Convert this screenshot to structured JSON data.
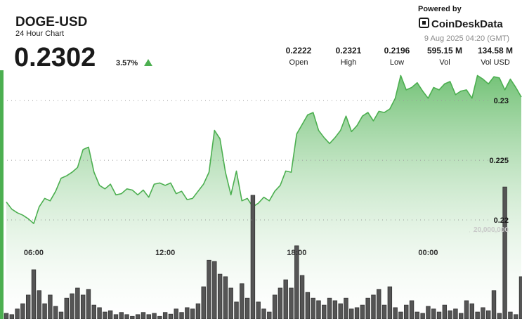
{
  "header": {
    "price": "0.2302",
    "change": "3.57%",
    "powered_by": "Powered by",
    "brand": "CoinDeskData",
    "timestamp": "9 Aug 2025 04:20 (GMT)",
    "stats": [
      {
        "value": "0.2222",
        "label": "Open"
      },
      {
        "value": "0.2321",
        "label": "High"
      },
      {
        "value": "0.2196",
        "label": "Low"
      },
      {
        "value": "595.15 M",
        "label": "Vol"
      },
      {
        "value": "134.58 M",
        "label": "Vol USD"
      }
    ]
  },
  "chart_data": {
    "type": "line",
    "title": "DOGE-USD",
    "subtitle": "24 Hour Chart",
    "categories": [
      null,
      null,
      null,
      null,
      null,
      "06:00",
      null,
      null,
      null,
      null,
      null,
      null,
      null,
      null,
      null,
      null,
      null,
      null,
      null,
      null,
      null,
      null,
      null,
      null,
      null,
      null,
      null,
      null,
      null,
      "12:00",
      null,
      null,
      null,
      null,
      null,
      null,
      null,
      null,
      null,
      null,
      null,
      null,
      null,
      null,
      null,
      null,
      null,
      null,
      null,
      null,
      null,
      null,
      null,
      "18:00",
      null,
      null,
      null,
      null,
      null,
      null,
      null,
      null,
      null,
      null,
      null,
      null,
      null,
      null,
      null,
      null,
      null,
      null,
      null,
      null,
      null,
      null,
      null,
      "00:00",
      null,
      null,
      null,
      null,
      null,
      null,
      null,
      null,
      null,
      null,
      null,
      null,
      null,
      null,
      null,
      null,
      null
    ],
    "ylim": [
      0.2117,
      0.2336
    ],
    "yticks": [
      0.22,
      0.225,
      0.23
    ],
    "y2lim": [
      0,
      60000000
    ],
    "y2ticks": [
      {
        "value": 20000000,
        "label": "20,000,000"
      }
    ],
    "grid": true,
    "series": [
      {
        "type": "area",
        "color": "#4caf50",
        "values": [
          0.2215,
          0.2209,
          0.2206,
          0.2204,
          0.2201,
          0.2197,
          0.2211,
          0.2218,
          0.2216,
          0.2224,
          0.2235,
          0.2237,
          0.224,
          0.2244,
          0.2259,
          0.2261,
          0.224,
          0.2229,
          0.2226,
          0.223,
          0.2221,
          0.2222,
          0.2226,
          0.2225,
          0.2221,
          0.2225,
          0.2219,
          0.223,
          0.2231,
          0.2229,
          0.2231,
          0.2222,
          0.2224,
          0.2217,
          0.2218,
          0.2224,
          0.223,
          0.224,
          0.2275,
          0.2268,
          0.224,
          0.2221,
          0.2241,
          0.2216,
          0.2218,
          0.2211,
          0.2214,
          0.2219,
          0.2216,
          0.2224,
          0.2229,
          0.2241,
          0.224,
          0.2272,
          0.228,
          0.2288,
          0.229,
          0.2275,
          0.2269,
          0.2264,
          0.2269,
          0.2275,
          0.2287,
          0.2274,
          0.2279,
          0.2287,
          0.229,
          0.2283,
          0.2291,
          0.229,
          0.2293,
          0.2302,
          0.2321,
          0.2309,
          0.2311,
          0.2315,
          0.2308,
          0.2302,
          0.2311,
          0.2309,
          0.2314,
          0.2316,
          0.2305,
          0.2308,
          0.2309,
          0.2302,
          0.2321,
          0.2318,
          0.2314,
          0.232,
          0.2319,
          0.2309,
          0.2318,
          0.2311,
          0.2303
        ]
      },
      {
        "type": "bar",
        "axis": "y2",
        "color": "#555555",
        "values": [
          1300000,
          1000000,
          2300000,
          3500000,
          5500000,
          11300000,
          6500000,
          3500000,
          5500000,
          2900000,
          1600000,
          4800000,
          5800000,
          7100000,
          5500000,
          6800000,
          3200000,
          2600000,
          1600000,
          1900000,
          1000000,
          1500000,
          1000000,
          600000,
          1000000,
          1500000,
          1000000,
          1300000,
          600000,
          1500000,
          1100000,
          2300000,
          1500000,
          2600000,
          2300000,
          3500000,
          7400000,
          13500000,
          13200000,
          10300000,
          9700000,
          7100000,
          3900000,
          8100000,
          4800000,
          28400000,
          3900000,
          2300000,
          1600000,
          5500000,
          7100000,
          9000000,
          7100000,
          16800000,
          10000000,
          6100000,
          4800000,
          4200000,
          3200000,
          4800000,
          4200000,
          3500000,
          4800000,
          2300000,
          2600000,
          3200000,
          4800000,
          5500000,
          6800000,
          3200000,
          7400000,
          2600000,
          1600000,
          3200000,
          4200000,
          1600000,
          1300000,
          2900000,
          2300000,
          1600000,
          3200000,
          1900000,
          2300000,
          1300000,
          4200000,
          3500000,
          1600000,
          2600000,
          1900000,
          6500000,
          1300000,
          30300000,
          1600000,
          1000000,
          9700000
        ]
      }
    ]
  }
}
